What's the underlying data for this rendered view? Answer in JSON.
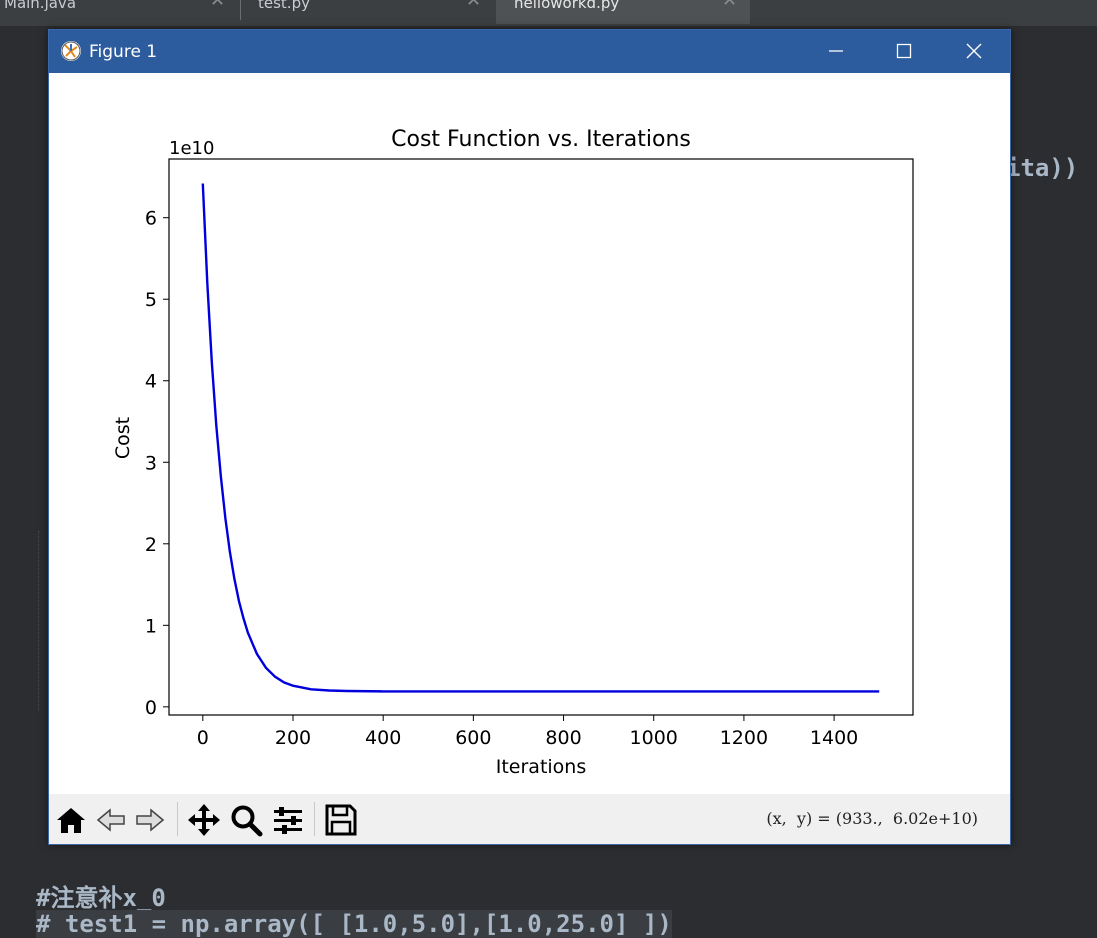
{
  "ide": {
    "tabs": [
      {
        "label": "Main.java",
        "close": "✕"
      },
      {
        "label": "test.py",
        "close": "✕"
      },
      {
        "label": "helloworkd.py",
        "close": "✕"
      }
    ],
    "code_fragments": {
      "right_fragment": "ita))",
      "comment_line": "#注意补x_0",
      "last_line": "# test1 = np.array([ [1.0,5.0],[1.0,25.0] ])"
    }
  },
  "window": {
    "title": "Figure 1",
    "controls": {
      "minimize": "—",
      "maximize": "☐",
      "close": "✕"
    }
  },
  "toolbar": {
    "coord_readout": "(x,  y) = (933.,  6.02e+10)"
  },
  "colors": {
    "line": "#0000dd",
    "titlebar": "#2c5c9e",
    "ide_bg": "#2b2d30"
  },
  "chart_data": {
    "type": "line",
    "title": "Cost Function vs. Iterations",
    "xlabel": "Iterations",
    "ylabel": "Cost",
    "offset_text": "1e10",
    "xlim": [
      -75,
      1575
    ],
    "ylim": [
      -0.1,
      6.72
    ],
    "xticks": [
      0,
      200,
      400,
      600,
      800,
      1000,
      1200,
      1400
    ],
    "yticks": [
      0,
      1,
      2,
      3,
      4,
      5,
      6
    ],
    "grid": false,
    "series": [
      {
        "color": "#0000dd",
        "x": [
          0,
          10,
          20,
          30,
          40,
          50,
          60,
          70,
          80,
          90,
          100,
          120,
          140,
          160,
          180,
          200,
          240,
          280,
          320,
          400,
          500,
          700,
          1000,
          1300,
          1500
        ],
        "y": [
          6.42,
          5.2,
          4.23,
          3.45,
          2.82,
          2.31,
          1.9,
          1.57,
          1.3,
          1.09,
          0.91,
          0.65,
          0.48,
          0.37,
          0.3,
          0.26,
          0.215,
          0.2,
          0.195,
          0.19,
          0.19,
          0.19,
          0.19,
          0.19,
          0.19
        ]
      }
    ]
  }
}
